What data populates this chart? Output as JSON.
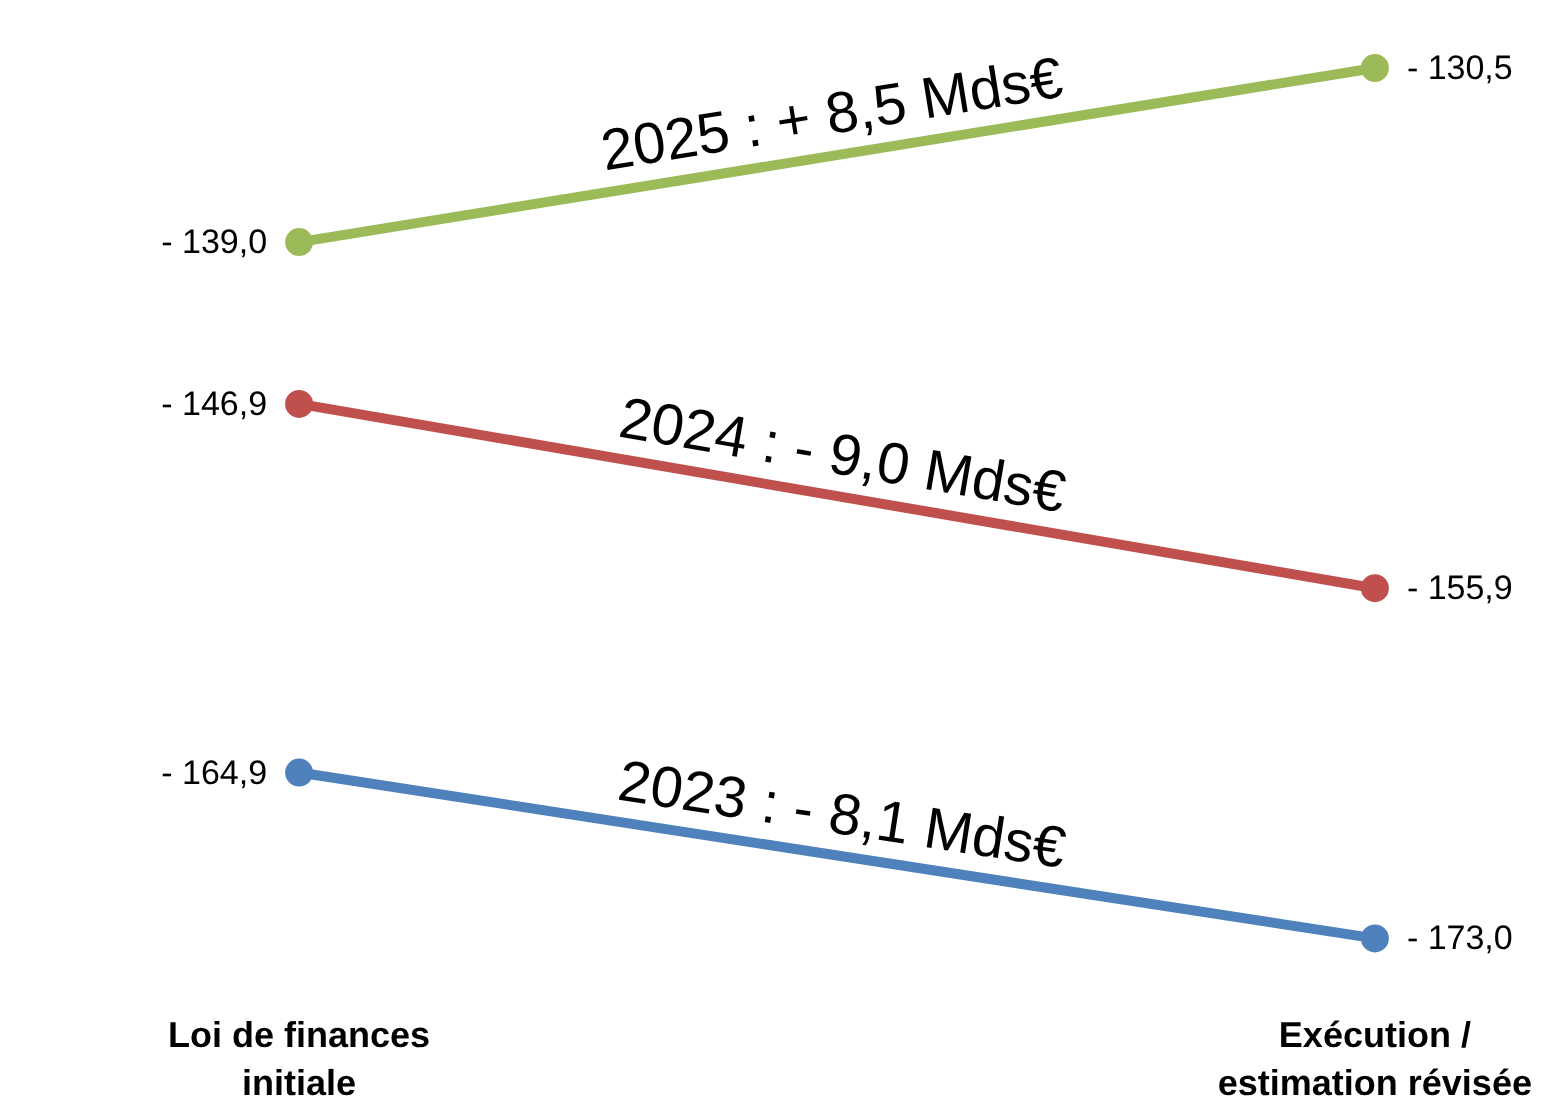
{
  "chart_data": {
    "type": "line",
    "categories": [
      "Loi de finances\ninitiale",
      "Exécution /\nestimation révisée"
    ],
    "marker": "circle",
    "series": [
      {
        "name": "2025 : + 8,5 Mds€",
        "color": "#9bbb59",
        "values": [
          -139.0,
          -130.5
        ],
        "value_labels": [
          "- 139,0",
          "- 130,5"
        ]
      },
      {
        "name": "2024 : - 9,0 Mds€",
        "color": "#c0504d",
        "values": [
          -146.9,
          -155.9
        ],
        "value_labels": [
          "- 146,9",
          "- 155,9"
        ]
      },
      {
        "name": "2023 : - 8,1 Mds€",
        "color": "#4f81bd",
        "values": [
          -164.9,
          -173.0
        ],
        "value_labels": [
          "- 164,9",
          "- 173,0"
        ]
      }
    ]
  }
}
